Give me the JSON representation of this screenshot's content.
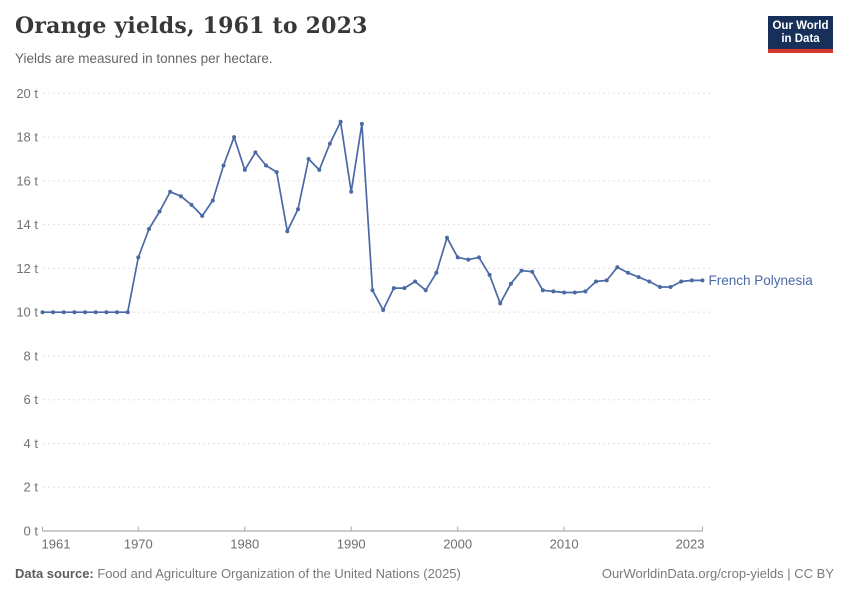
{
  "header": {
    "title": "Orange yields, 1961 to 2023",
    "subtitle": "Yields are measured in tonnes per hectare."
  },
  "logo": {
    "line1": "Our World",
    "line2": "in Data",
    "bg_color": "#163059",
    "accent_color": "#d4382c"
  },
  "chart_data": {
    "type": "line",
    "title": "Orange yields, 1961 to 2023",
    "ylabel": "tonnes per hectare",
    "unit": "t",
    "xlim": [
      1961,
      2023
    ],
    "ylim": [
      0,
      20
    ],
    "xticks": [
      1961,
      1970,
      1980,
      1990,
      2000,
      2010,
      2023
    ],
    "yticks": [
      0,
      2,
      4,
      6,
      8,
      10,
      12,
      14,
      16,
      18,
      20
    ],
    "ytick_suffix": " t",
    "grid": "dashed-horizontal",
    "legend_position": "right-of-line-end",
    "series": [
      {
        "name": "French Polynesia",
        "color": "#4a69a5",
        "x": [
          1961,
          1962,
          1963,
          1964,
          1965,
          1966,
          1967,
          1968,
          1969,
          1970,
          1971,
          1972,
          1973,
          1974,
          1975,
          1976,
          1977,
          1978,
          1979,
          1980,
          1981,
          1982,
          1983,
          1984,
          1985,
          1986,
          1987,
          1988,
          1989,
          1990,
          1991,
          1992,
          1993,
          1994,
          1995,
          1996,
          1997,
          1998,
          1999,
          2000,
          2001,
          2002,
          2003,
          2004,
          2005,
          2006,
          2007,
          2008,
          2009,
          2010,
          2011,
          2012,
          2013,
          2014,
          2015,
          2016,
          2017,
          2018,
          2019,
          2020,
          2021,
          2022,
          2023
        ],
        "values": [
          10,
          10,
          10,
          10,
          10,
          10,
          10,
          10,
          10,
          12.5,
          13.8,
          14.6,
          15.5,
          15.3,
          14.9,
          14.4,
          15.1,
          16.7,
          18,
          16.5,
          17.3,
          16.7,
          16.4,
          13.7,
          14.7,
          17,
          16.5,
          17.7,
          18.7,
          15.5,
          18.6,
          11,
          10.1,
          11.1,
          11.1,
          11.4,
          11,
          11.8,
          13.4,
          12.5,
          12.4,
          12.5,
          11.7,
          10.4,
          11.3,
          11.9,
          11.85,
          11,
          10.95,
          10.9,
          10.9,
          10.95,
          11.4,
          11.45,
          12.05,
          11.8,
          11.6,
          11.4,
          11.15,
          11.15,
          11.4,
          11.45,
          11.45
        ]
      }
    ]
  },
  "footer": {
    "source_label": "Data source:",
    "source_text": " Food and Agriculture Organization of the United Nations (2025)",
    "attribution": "OurWorldinData.org/crop-yields | CC BY"
  },
  "colors": {
    "gridline": "#e0e0e0",
    "axis": "#9a9a9a",
    "tick": "#ababab",
    "axis_label": "#6e6e6e"
  }
}
